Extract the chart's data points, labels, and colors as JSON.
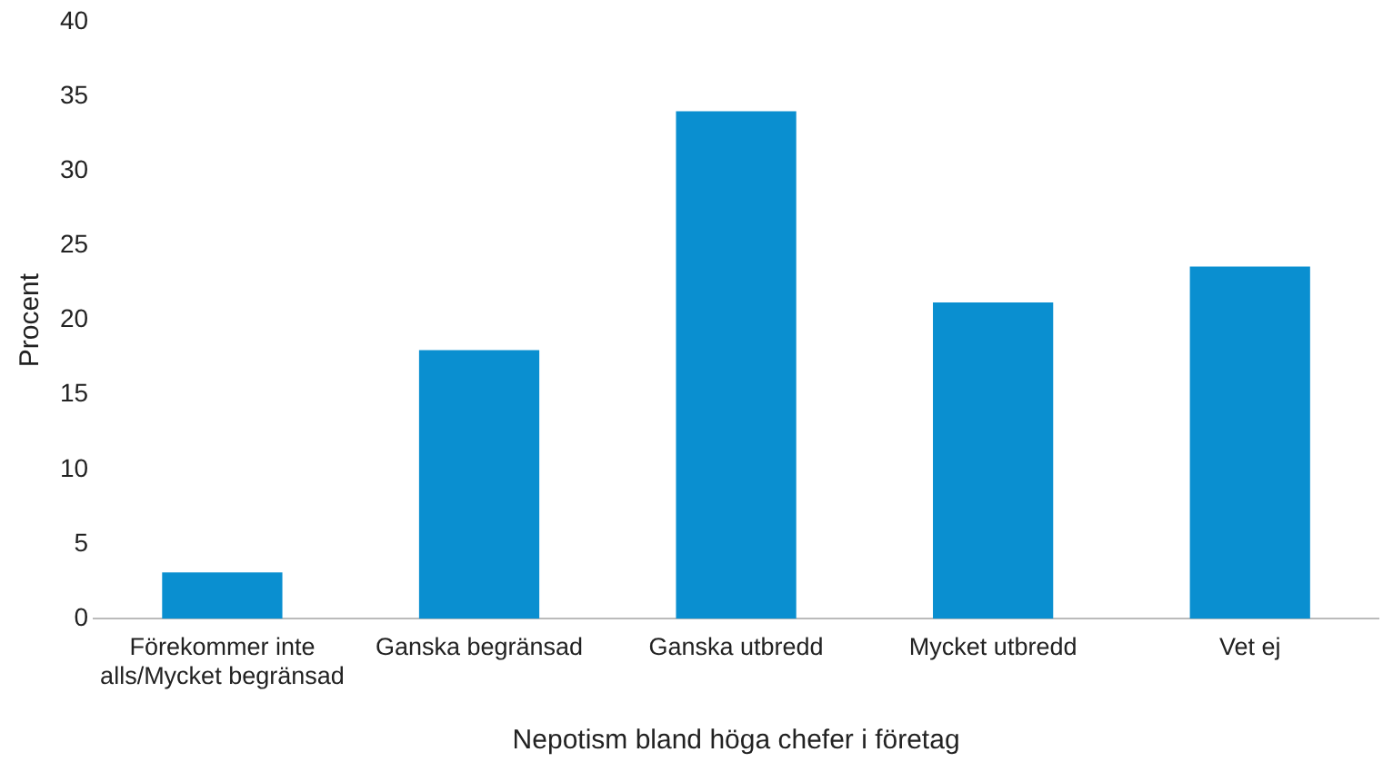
{
  "chart_data": {
    "type": "bar",
    "xlabel": "Nepotism bland höga chefer i företag",
    "ylabel": "Procent",
    "categories": [
      "Förekommer inte alls/Mycket begränsad",
      "Ganska begränsad",
      "Ganska utbredd",
      "Mycket utbredd",
      "Vet ej"
    ],
    "values": [
      3.1,
      18.0,
      34.0,
      21.2,
      23.6
    ],
    "color": "#0a8fd0",
    "ylim": [
      0,
      40
    ],
    "yticks": [
      0,
      5,
      10,
      15,
      20,
      25,
      30,
      35,
      40
    ],
    "grid": false,
    "legend": false
  }
}
